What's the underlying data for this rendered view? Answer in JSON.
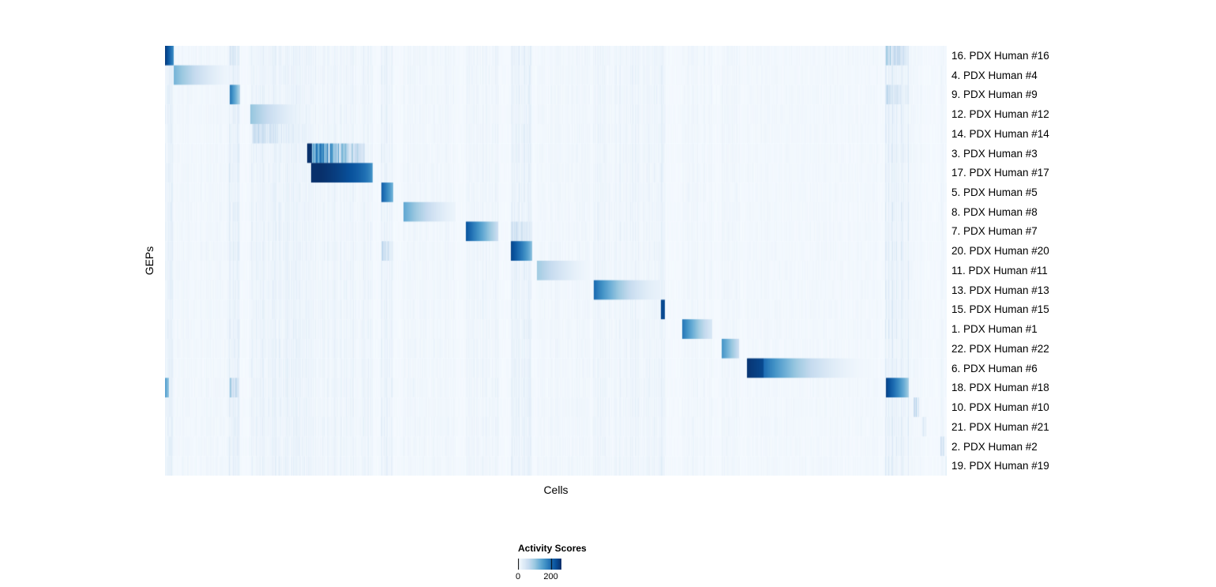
{
  "figure": {
    "background": "#ffffff",
    "text_color": "#000000"
  },
  "chart_data": {
    "type": "heatmap",
    "title": "",
    "xlabel": "Cells",
    "ylabel": "GEPs",
    "colormap": "Blues",
    "colormap_stops": [
      "#f7fbff",
      "#deebf7",
      "#c6dbef",
      "#9ecae1",
      "#6baed6",
      "#4292c6",
      "#2171b5",
      "#08519c",
      "#08306b"
    ],
    "legend": {
      "title": "Activity Scores",
      "ticks": [
        0,
        200
      ],
      "max": 260
    },
    "n_cells": 990,
    "grid": false,
    "rows": [
      {
        "label": "16. PDX Human #16",
        "blocks": [
          {
            "start": 0.0,
            "end": 0.011,
            "peak": 250,
            "end_val": 160,
            "curve": 0.8
          },
          {
            "start": 0.083,
            "end": 0.094,
            "peak": 60,
            "end_val": 25,
            "curve": 1,
            "streaky": true
          },
          {
            "start": 0.922,
            "end": 0.9515,
            "peak": 110,
            "end_val": 35,
            "curve": 1,
            "streaky": true
          }
        ]
      },
      {
        "label": "4. PDX Human #4",
        "blocks": [
          {
            "start": 0.011,
            "end": 0.0835,
            "peak": 125,
            "end_val": 12,
            "curve": 1.6
          }
        ]
      },
      {
        "label": "9. PDX Human #9",
        "blocks": [
          {
            "start": 0.0825,
            "end": 0.0955,
            "peak": 195,
            "end_val": 80,
            "curve": 0.9
          },
          {
            "start": 0.922,
            "end": 0.9515,
            "peak": 70,
            "end_val": 25,
            "curve": 1,
            "streaky": true
          }
        ]
      },
      {
        "label": "12. PDX Human #12",
        "blocks": [
          {
            "start": 0.109,
            "end": 0.1825,
            "peak": 105,
            "end_val": 10,
            "curve": 1.6
          }
        ]
      },
      {
        "label": "14. PDX Human #14",
        "blocks": [
          {
            "start": 0.112,
            "end": 0.1825,
            "peak": 75,
            "end_val": 18,
            "curve": 1.2,
            "streaky": true
          }
        ]
      },
      {
        "label": "3. PDX Human #3",
        "blocks": [
          {
            "start": 0.1815,
            "end": 0.186,
            "peak": 268,
            "end_val": 268,
            "curve": 1
          },
          {
            "start": 0.186,
            "end": 0.2555,
            "peak": 240,
            "end_val": 55,
            "curve": 1.1,
            "streaky": true
          }
        ]
      },
      {
        "label": "17. PDX Human #17",
        "blocks": [
          {
            "start": 0.187,
            "end": 0.2655,
            "peak": 268,
            "end_val": 130,
            "curve": 0.35
          }
        ]
      },
      {
        "label": "5. PDX Human #5",
        "blocks": [
          {
            "start": 0.2765,
            "end": 0.2915,
            "peak": 215,
            "end_val": 120,
            "curve": 0.8
          }
        ]
      },
      {
        "label": "8. PDX Human #8",
        "blocks": [
          {
            "start": 0.305,
            "end": 0.3715,
            "peak": 140,
            "end_val": 15,
            "curve": 1.5
          }
        ]
      },
      {
        "label": "7. PDX Human #7",
        "blocks": [
          {
            "start": 0.385,
            "end": 0.4265,
            "peak": 225,
            "end_val": 55,
            "curve": 1.0
          },
          {
            "start": 0.4425,
            "end": 0.4695,
            "peak": 70,
            "end_val": 30,
            "curve": 1,
            "streaky": true
          }
        ]
      },
      {
        "label": "20. PDX Human #20",
        "blocks": [
          {
            "start": 0.4425,
            "end": 0.4695,
            "peak": 240,
            "end_val": 100,
            "curve": 0.7
          },
          {
            "start": 0.2765,
            "end": 0.2915,
            "peak": 80,
            "end_val": 35,
            "curve": 1,
            "streaky": true
          }
        ]
      },
      {
        "label": "11. PDX Human #11",
        "blocks": [
          {
            "start": 0.476,
            "end": 0.5425,
            "peak": 95,
            "end_val": 10,
            "curve": 1.5
          }
        ]
      },
      {
        "label": "13. PDX Human #13",
        "blocks": [
          {
            "start": 0.548,
            "end": 0.6335,
            "peak": 205,
            "end_val": 20,
            "curve": 1.8
          }
        ]
      },
      {
        "label": "15. PDX Human #15",
        "blocks": [
          {
            "start": 0.6345,
            "end": 0.639,
            "peak": 235,
            "end_val": 235,
            "curve": 1
          }
        ]
      },
      {
        "label": "1. PDX Human #1",
        "blocks": [
          {
            "start": 0.662,
            "end": 0.6995,
            "peak": 190,
            "end_val": 40,
            "curve": 1.2
          }
        ]
      },
      {
        "label": "22. PDX Human #22",
        "blocks": [
          {
            "start": 0.7125,
            "end": 0.7345,
            "peak": 160,
            "end_val": 55,
            "curve": 1.0
          }
        ]
      },
      {
        "label": "6. PDX Human #6",
        "blocks": [
          {
            "start": 0.7445,
            "end": 0.766,
            "peak": 255,
            "end_val": 235,
            "curve": 1
          },
          {
            "start": 0.766,
            "end": 0.912,
            "peak": 200,
            "end_val": 6,
            "curve": 2.2
          }
        ]
      },
      {
        "label": "18. PDX Human #18",
        "blocks": [
          {
            "start": 0.922,
            "end": 0.9515,
            "peak": 245,
            "end_val": 85,
            "curve": 0.8
          },
          {
            "start": 0.0,
            "end": 0.0055,
            "peak": 150,
            "end_val": 95,
            "curve": 1
          },
          {
            "start": 0.083,
            "end": 0.094,
            "peak": 105,
            "end_val": 50,
            "curve": 1,
            "streaky": true
          }
        ]
      },
      {
        "label": "10. PDX Human #10",
        "blocks": [
          {
            "start": 0.9575,
            "end": 0.9645,
            "peak": 100,
            "end_val": 50,
            "curve": 1,
            "streaky": true
          }
        ]
      },
      {
        "label": "21. PDX Human #21",
        "blocks": [
          {
            "start": 0.9685,
            "end": 0.9745,
            "peak": 50,
            "end_val": 20,
            "curve": 1,
            "streaky": true
          }
        ]
      },
      {
        "label": "2. PDX Human #2",
        "blocks": [
          {
            "start": 0.992,
            "end": 0.997,
            "peak": 75,
            "end_val": 40,
            "curve": 1,
            "streaky": true
          }
        ]
      },
      {
        "label": "19. PDX Human #19",
        "blocks": [
          {
            "start": 0.9975,
            "end": 1.0,
            "peak": 45,
            "end_val": 20,
            "curve": 1,
            "streaky": true
          }
        ]
      }
    ],
    "noise_bands": [
      {
        "start": 0.0,
        "end": 0.011,
        "intensity": 30
      },
      {
        "start": 0.011,
        "end": 0.0835,
        "intensity": 10
      },
      {
        "start": 0.0825,
        "end": 0.0955,
        "intensity": 45
      },
      {
        "start": 0.109,
        "end": 0.1825,
        "intensity": 28
      },
      {
        "start": 0.1815,
        "end": 0.2655,
        "intensity": 20
      },
      {
        "start": 0.2765,
        "end": 0.2915,
        "intensity": 35
      },
      {
        "start": 0.305,
        "end": 0.3715,
        "intensity": 12
      },
      {
        "start": 0.385,
        "end": 0.4265,
        "intensity": 22
      },
      {
        "start": 0.4425,
        "end": 0.4695,
        "intensity": 28
      },
      {
        "start": 0.476,
        "end": 0.5425,
        "intensity": 10
      },
      {
        "start": 0.548,
        "end": 0.6335,
        "intensity": 20
      },
      {
        "start": 0.6345,
        "end": 0.64,
        "intensity": 35
      },
      {
        "start": 0.662,
        "end": 0.6995,
        "intensity": 12
      },
      {
        "start": 0.7125,
        "end": 0.7345,
        "intensity": 14
      },
      {
        "start": 0.7445,
        "end": 0.912,
        "intensity": 7
      },
      {
        "start": 0.922,
        "end": 0.9515,
        "intensity": 40
      },
      {
        "start": 0.9515,
        "end": 0.968,
        "intensity": 8
      },
      {
        "start": 0.992,
        "end": 1.0,
        "intensity": 10
      }
    ]
  }
}
